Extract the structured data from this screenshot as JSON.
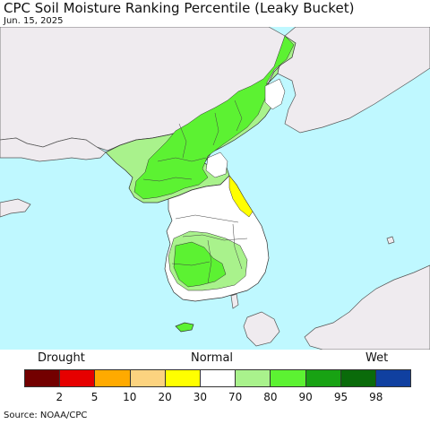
{
  "title": "CPC Soil Moisture Ranking Percentile (Leaky Bucket)",
  "date": "Jun. 15, 2025",
  "legend": {
    "left_label": "Drought",
    "center_label": "Normal",
    "right_label": "Wet",
    "colors": [
      "#730000",
      "#e60000",
      "#ffaa00",
      "#fcd37f",
      "#ffff00",
      "#ffffff",
      "#a9f28c",
      "#5cf232",
      "#18a213",
      "#0a6b0a",
      "#1040a0"
    ],
    "ticks": [
      "2",
      "5",
      "10",
      "20",
      "30",
      "70",
      "80",
      "90",
      "95",
      "98"
    ]
  },
  "map_colors": {
    "sea": "#bff8ff",
    "land_outside": "#efebef",
    "normal": "#ffffff",
    "pct_70_80": "#a9f28c",
    "pct_80_90": "#5cf232",
    "pct_20_30": "#ffff00",
    "border": "#333333"
  },
  "source": "Source: NOAA/CPC"
}
